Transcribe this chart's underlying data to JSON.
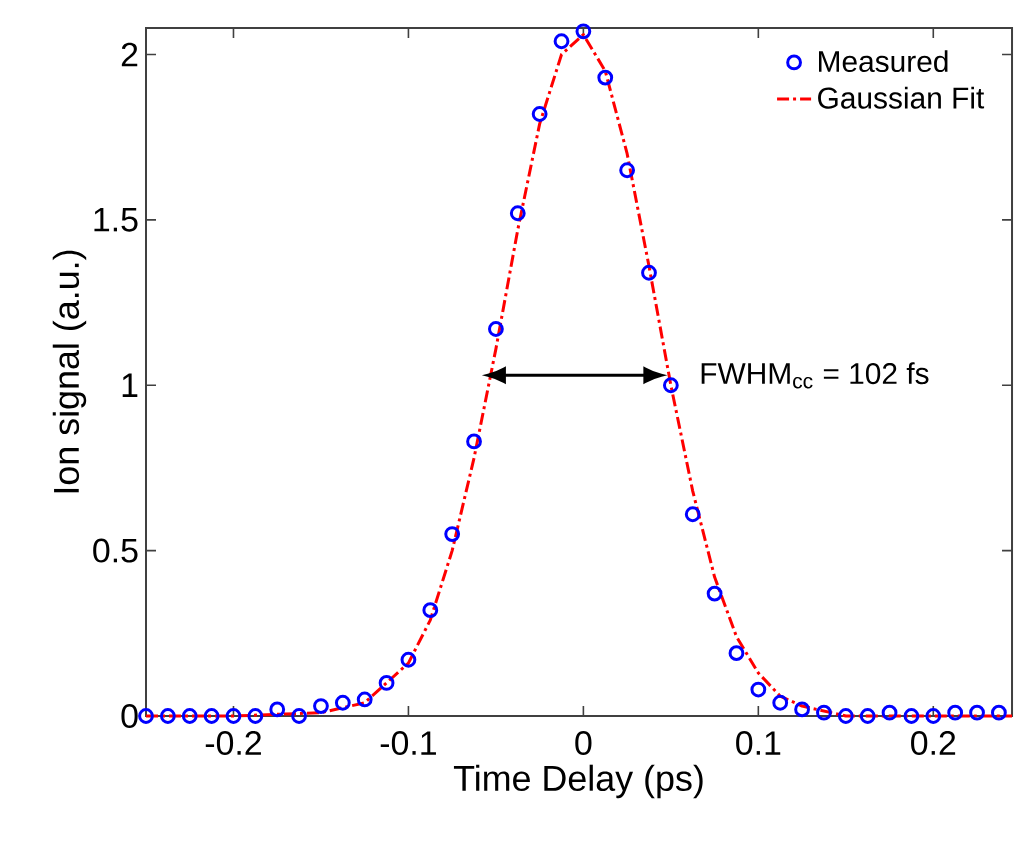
{
  "chart_data": {
    "type": "scatter",
    "xlabel": "Time Delay (ps)",
    "ylabel": "Ion signal (a.u.)",
    "xlim": [
      -0.25,
      0.245
    ],
    "ylim": [
      0,
      2.08
    ],
    "xticks": [
      -0.2,
      -0.1,
      0,
      0.1,
      0.2
    ],
    "yticks": [
      0,
      0.5,
      1,
      1.5,
      2
    ],
    "legend": "top right",
    "grid": false,
    "annotations": [
      {
        "text": "FWHM$_{cc}$ = 102 fs",
        "x": 0.05,
        "y": 1.03
      }
    ],
    "series": [
      {
        "name": "Measured",
        "marker": "circle",
        "color": "#0000ff",
        "x": [
          -0.25,
          -0.2375,
          -0.225,
          -0.2125,
          -0.2,
          -0.1875,
          -0.175,
          -0.1625,
          -0.15,
          -0.1375,
          -0.125,
          -0.1125,
          -0.1,
          -0.0875,
          -0.075,
          -0.0625,
          -0.05,
          -0.0375,
          -0.025,
          -0.0125,
          0,
          0.0125,
          0.025,
          0.0375,
          0.05,
          0.0625,
          0.075,
          0.0875,
          0.1,
          0.1125,
          0.125,
          0.1375,
          0.15,
          0.1625,
          0.175,
          0.1875,
          0.2,
          0.2125,
          0.225,
          0.2375
        ],
        "values": [
          0.0,
          0.0,
          0.0,
          0.0,
          0.0,
          0.0,
          0.02,
          0.0,
          0.03,
          0.04,
          0.05,
          0.1,
          0.17,
          0.32,
          0.55,
          0.83,
          1.17,
          1.52,
          1.82,
          2.04,
          2.07,
          1.93,
          1.65,
          1.34,
          1.0,
          0.61,
          0.37,
          0.19,
          0.08,
          0.04,
          0.02,
          0.01,
          0.0,
          0.0,
          0.01,
          0.0,
          0.0,
          0.01,
          0.01,
          0.01
        ]
      },
      {
        "name": "Gaussian Fit",
        "type": "line",
        "marker": "none",
        "line_style": "dashed",
        "color": "#ff0000",
        "x": [
          -0.25,
          -0.2,
          -0.15,
          -0.125,
          -0.1,
          -0.0875,
          -0.075,
          -0.0625,
          -0.05,
          -0.0375,
          -0.025,
          -0.0125,
          0,
          0.0125,
          0.025,
          0.0375,
          0.05,
          0.0625,
          0.075,
          0.0875,
          0.1,
          0.1125,
          0.125,
          0.15,
          0.2,
          0.245
        ],
        "values": [
          0.0,
          0.0,
          0.01,
          0.04,
          0.16,
          0.29,
          0.5,
          0.78,
          1.11,
          1.47,
          1.79,
          2.0,
          2.06,
          1.95,
          1.7,
          1.36,
          1.0,
          0.68,
          0.42,
          0.24,
          0.13,
          0.06,
          0.03,
          0.0,
          0.0,
          0.0
        ]
      }
    ]
  }
}
